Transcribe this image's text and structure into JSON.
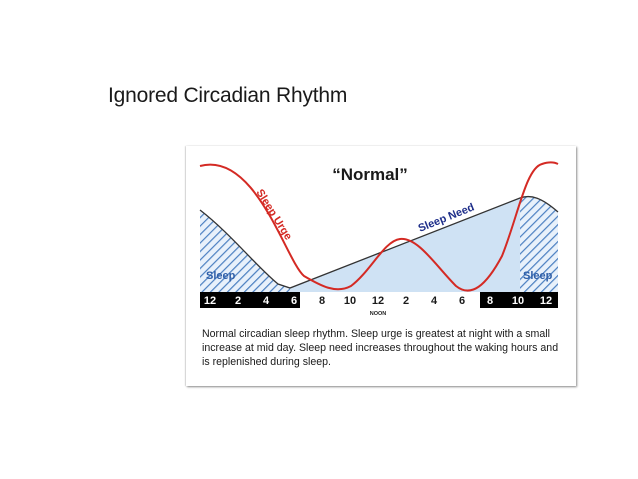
{
  "slide": {
    "title": "Ignored Circadian Rhythm"
  },
  "figure": {
    "heading": "“Normal”",
    "sleep_urge_label": "Sleep Urge",
    "sleep_need_label": "Sleep Need",
    "sleep_label_left": "Sleep",
    "sleep_label_right": "Sleep",
    "noon_label": "NOON",
    "time_ticks": [
      "12",
      "2",
      "4",
      "6",
      "8",
      "10",
      "12",
      "2",
      "4",
      "6",
      "8",
      "10",
      "12"
    ],
    "caption": "Normal circadian sleep rhythm.  Sleep urge is greatest at night with a small increase at mid day.  Sleep need increases throughout the waking hours and is replenished during sleep.",
    "colors": {
      "urge_curve": "#d42a24",
      "need_fill": "#cfe2f4",
      "need_curve": "#333333",
      "sleep_hatch": "#4a7fc1",
      "sleep_text": "#2f5fa8",
      "night_bar": "#000000"
    }
  }
}
